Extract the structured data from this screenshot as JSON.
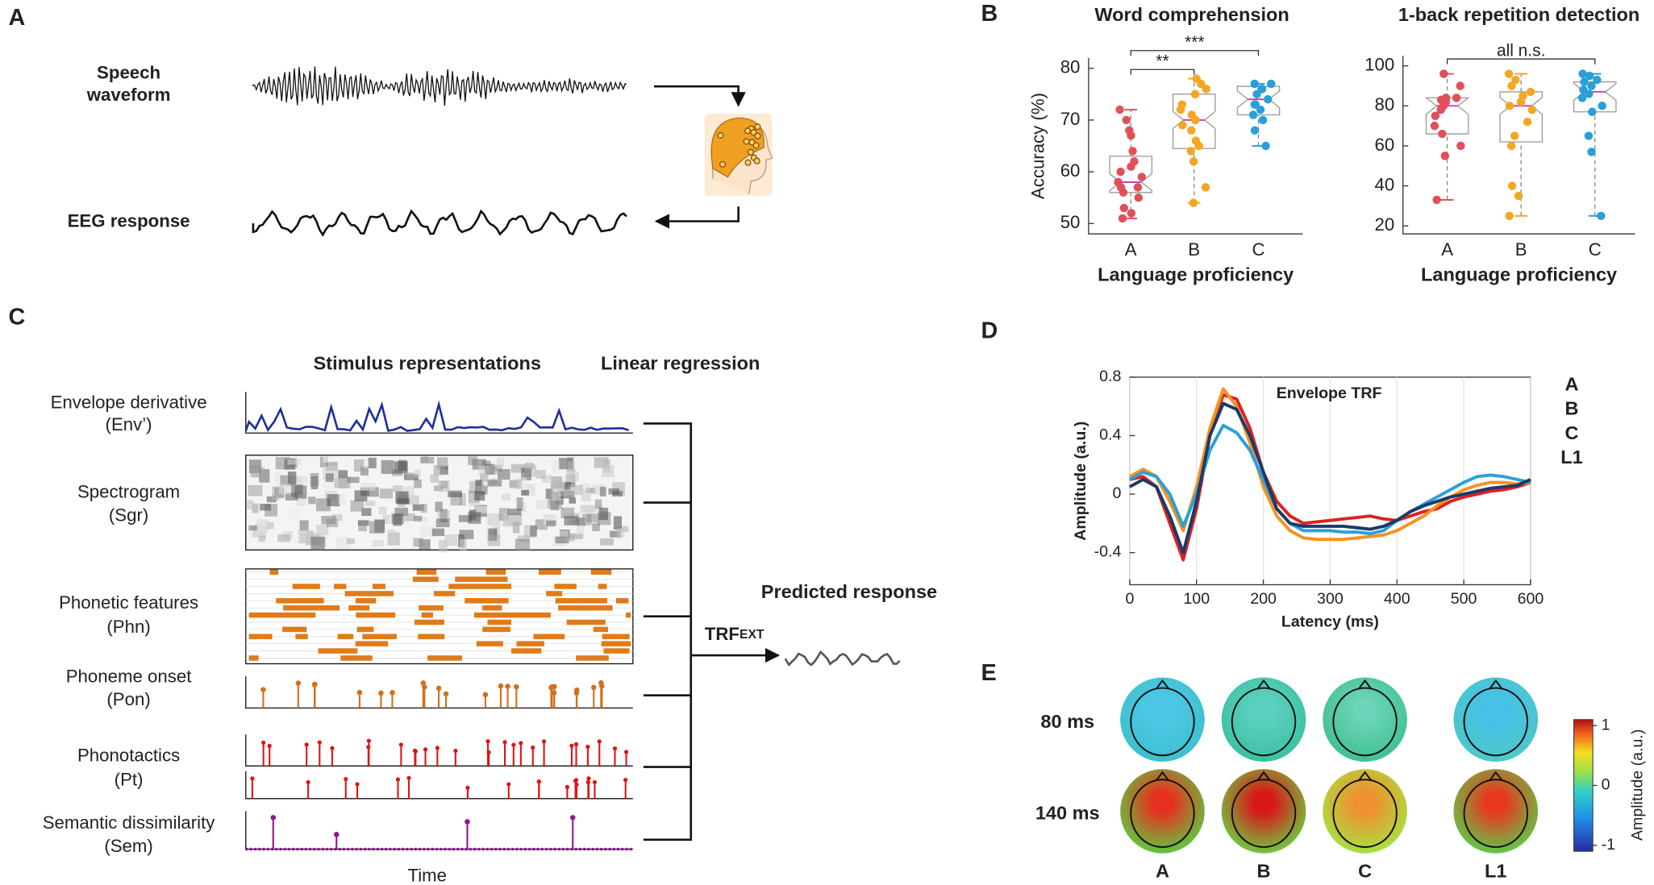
{
  "panel_letters": [
    "A",
    "B",
    "C",
    "D",
    "E"
  ],
  "panel_a": {
    "speech_label": [
      "Speech",
      "waveform"
    ],
    "eeg_label": "EEG response"
  },
  "panel_c": {
    "heading_stimulus": "Stimulus representations",
    "heading_regression": "Linear regression",
    "features": [
      {
        "name": "Envelope derivative",
        "abbr": "(Env’)",
        "color": "#1f2f99"
      },
      {
        "name": "Spectrogram",
        "abbr": "(Sgr)",
        "color": "#333333"
      },
      {
        "name": "Phonetic features",
        "abbr": "(Phn)",
        "color": "#e07b1a"
      },
      {
        "name": "Phoneme onset",
        "abbr": "(Pon)",
        "color": "#d2701c"
      },
      {
        "name": "Phonotactics",
        "abbr": "(Pt)",
        "color": "#e01414"
      },
      {
        "name": "Semantic  dissimilarity",
        "abbr": "(Sem)",
        "color": "#8a1a8a"
      }
    ],
    "predicted": "Predicted response",
    "trf": "TRF",
    "trf_subscript": "EXT",
    "time": "Time"
  },
  "chart_data": [
    {
      "type": "box",
      "title": "Word comprehension",
      "y_label": "Accuracy (%)",
      "x_label": "Language proficiency",
      "categories": [
        "A",
        "B",
        "C"
      ],
      "ylim": [
        48,
        82
      ],
      "yticks": [
        50,
        60,
        70,
        80
      ],
      "annotations": [
        "**",
        "***"
      ],
      "boxes": [
        {
          "color": "#e0505a",
          "min": 51,
          "q1": 56,
          "median": 58,
          "q3": 63,
          "max": 72,
          "points": [
            51,
            52,
            53,
            55,
            56,
            57,
            57,
            58,
            59,
            60,
            61,
            62,
            64,
            67,
            68,
            70,
            72
          ]
        },
        {
          "color": "#f5a623",
          "min": 54,
          "q1": 64.5,
          "median": 70,
          "q3": 75,
          "max": 78,
          "points": [
            54,
            57,
            62,
            64,
            65,
            66,
            68,
            69,
            70,
            71,
            72,
            73,
            75,
            76,
            77,
            78
          ]
        },
        {
          "color": "#2aa0d8",
          "min": 65,
          "q1": 71,
          "median": 74,
          "q3": 76.5,
          "max": 77,
          "points": [
            65,
            68,
            70,
            71,
            72,
            73,
            73,
            74,
            75,
            76,
            76,
            77,
            77
          ]
        }
      ]
    },
    {
      "type": "box",
      "title": "1-back repetition detection",
      "x_label": "Language proficiency",
      "categories": [
        "A",
        "B",
        "C"
      ],
      "ylim": [
        16,
        105
      ],
      "yticks": [
        20,
        40,
        60,
        80,
        100
      ],
      "annotations": [
        "all n.s."
      ],
      "boxes": [
        {
          "color": "#e0505a",
          "min": 33,
          "q1": 66,
          "median": 80,
          "q3": 84,
          "max": 96,
          "points": [
            33,
            55,
            60,
            66,
            70,
            75,
            78,
            80,
            82,
            83,
            84,
            84,
            90,
            96
          ]
        },
        {
          "color": "#f5a623",
          "min": 25,
          "q1": 62,
          "median": 80,
          "q3": 87,
          "max": 96,
          "points": [
            25,
            35,
            40,
            60,
            65,
            72,
            78,
            80,
            82,
            85,
            87,
            90,
            93,
            96
          ]
        },
        {
          "color": "#2aa0d8",
          "min": 25,
          "q1": 77,
          "median": 87,
          "q3": 92,
          "max": 96,
          "points": [
            25,
            57,
            65,
            77,
            80,
            84,
            86,
            88,
            90,
            92,
            93,
            95,
            96
          ]
        }
      ]
    },
    {
      "type": "line",
      "title": "Envelope TRF",
      "y_label": "Amplitude (a.u.)",
      "x_label": "Latency (ms)",
      "xlim": [
        0,
        600
      ],
      "xticks": [
        0,
        100,
        200,
        300,
        400,
        500,
        600
      ],
      "ylim": [
        -0.62,
        0.8
      ],
      "yticks": [
        -0.4,
        0,
        0.4,
        0.8
      ],
      "grid": "x",
      "x": [
        0,
        20,
        40,
        60,
        80,
        100,
        120,
        140,
        160,
        180,
        200,
        220,
        240,
        260,
        280,
        300,
        320,
        340,
        360,
        380,
        400,
        420,
        440,
        460,
        480,
        500,
        520,
        540,
        560,
        580,
        600
      ],
      "series": [
        {
          "name": "A",
          "color": "#e02020",
          "values": [
            0.1,
            0.12,
            0.05,
            -0.2,
            -0.45,
            -0.1,
            0.4,
            0.68,
            0.65,
            0.45,
            0.15,
            -0.05,
            -0.15,
            -0.2,
            -0.19,
            -0.18,
            -0.17,
            -0.16,
            -0.15,
            -0.17,
            -0.18,
            -0.15,
            -0.12,
            -0.1,
            -0.05,
            -0.02,
            0.0,
            0.02,
            0.03,
            0.05,
            0.08
          ]
        },
        {
          "name": "B",
          "color": "#f5921e",
          "values": [
            0.12,
            0.17,
            0.12,
            -0.05,
            -0.25,
            0.05,
            0.45,
            0.72,
            0.6,
            0.35,
            0.05,
            -0.15,
            -0.25,
            -0.3,
            -0.31,
            -0.31,
            -0.31,
            -0.3,
            -0.29,
            -0.28,
            -0.25,
            -0.2,
            -0.15,
            -0.08,
            -0.02,
            0.03,
            0.06,
            0.08,
            0.08,
            0.07,
            0.08
          ]
        },
        {
          "name": "C",
          "color": "#2aa0d8",
          "values": [
            0.1,
            0.15,
            0.12,
            0.0,
            -0.22,
            0.0,
            0.3,
            0.47,
            0.42,
            0.3,
            0.1,
            -0.1,
            -0.2,
            -0.25,
            -0.25,
            -0.25,
            -0.26,
            -0.26,
            -0.27,
            -0.25,
            -0.18,
            -0.12,
            -0.07,
            -0.02,
            0.03,
            0.08,
            0.12,
            0.13,
            0.12,
            0.1,
            0.08
          ]
        },
        {
          "name": "L1",
          "color": "#1a3a6a",
          "values": [
            0.05,
            0.1,
            0.05,
            -0.15,
            -0.4,
            -0.05,
            0.4,
            0.62,
            0.58,
            0.4,
            0.15,
            -0.1,
            -0.2,
            -0.22,
            -0.22,
            -0.22,
            -0.22,
            -0.23,
            -0.24,
            -0.22,
            -0.18,
            -0.12,
            -0.08,
            -0.05,
            -0.02,
            0.0,
            0.02,
            0.04,
            0.05,
            0.06,
            0.1
          ]
        }
      ]
    }
  ],
  "panel_e": {
    "rows": [
      "80 ms",
      "140 ms"
    ],
    "columns": [
      "A",
      "B",
      "C",
      "L1"
    ],
    "colorbar": {
      "label": "Amplitude (a.u.)",
      "lim": [
        -1.1,
        1.1
      ],
      "ticks": [
        1,
        0,
        -1
      ]
    }
  }
}
